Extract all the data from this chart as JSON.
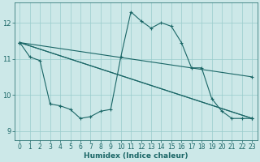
{
  "xlabel": "Humidex (Indice chaleur)",
  "background_color": "#cce8e8",
  "grid_color": "#99cccc",
  "line_color": "#1a6666",
  "xlim": [
    -0.5,
    23.5
  ],
  "ylim": [
    8.75,
    12.55
  ],
  "yticks": [
    9,
    10,
    11,
    12
  ],
  "xticks": [
    0,
    1,
    2,
    3,
    4,
    5,
    6,
    7,
    8,
    9,
    10,
    11,
    12,
    13,
    14,
    15,
    16,
    17,
    18,
    19,
    20,
    21,
    22,
    23
  ],
  "line1_x": [
    0,
    1,
    2,
    3,
    4,
    5,
    6,
    7,
    8,
    9,
    10,
    11,
    12,
    13,
    14,
    15,
    16,
    17,
    18,
    19,
    20,
    21,
    22,
    23
  ],
  "line1_y": [
    11.45,
    11.05,
    10.95,
    9.75,
    9.7,
    9.6,
    9.35,
    9.4,
    9.55,
    9.6,
    11.05,
    12.3,
    12.05,
    11.85,
    12.0,
    11.9,
    11.45,
    10.75,
    10.75,
    9.9,
    9.55,
    9.35,
    9.35,
    9.35
  ],
  "line2_x": [
    0,
    23
  ],
  "line2_y": [
    11.45,
    10.5
  ],
  "line3_x": [
    0,
    23
  ],
  "line3_y": [
    11.45,
    9.35
  ],
  "line4_x": [
    0,
    23
  ],
  "line4_y": [
    11.45,
    9.35
  ],
  "ytick_fontsize": 6,
  "xtick_fontsize": 5.5,
  "xlabel_fontsize": 6.5
}
